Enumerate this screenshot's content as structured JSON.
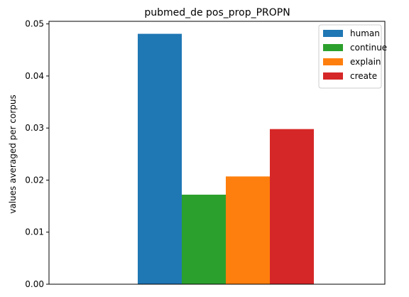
{
  "chart_data": {
    "type": "bar",
    "title": "pubmed_de pos_prop_PROPN",
    "xlabel": "",
    "ylabel": "values averaged per corpus",
    "ylim": [
      0,
      0.0505
    ],
    "yticks": [
      "0.00",
      "0.01",
      "0.02",
      "0.03",
      "0.04",
      "0.05"
    ],
    "grid": false,
    "legend_position": "top-right",
    "series": [
      {
        "name": "human",
        "value": 0.0481,
        "color": "#1f77b4"
      },
      {
        "name": "continue",
        "value": 0.0172,
        "color": "#2ca02c"
      },
      {
        "name": "explain",
        "value": 0.0207,
        "color": "#ff7f0e"
      },
      {
        "name": "create",
        "value": 0.0298,
        "color": "#d62728"
      }
    ]
  }
}
